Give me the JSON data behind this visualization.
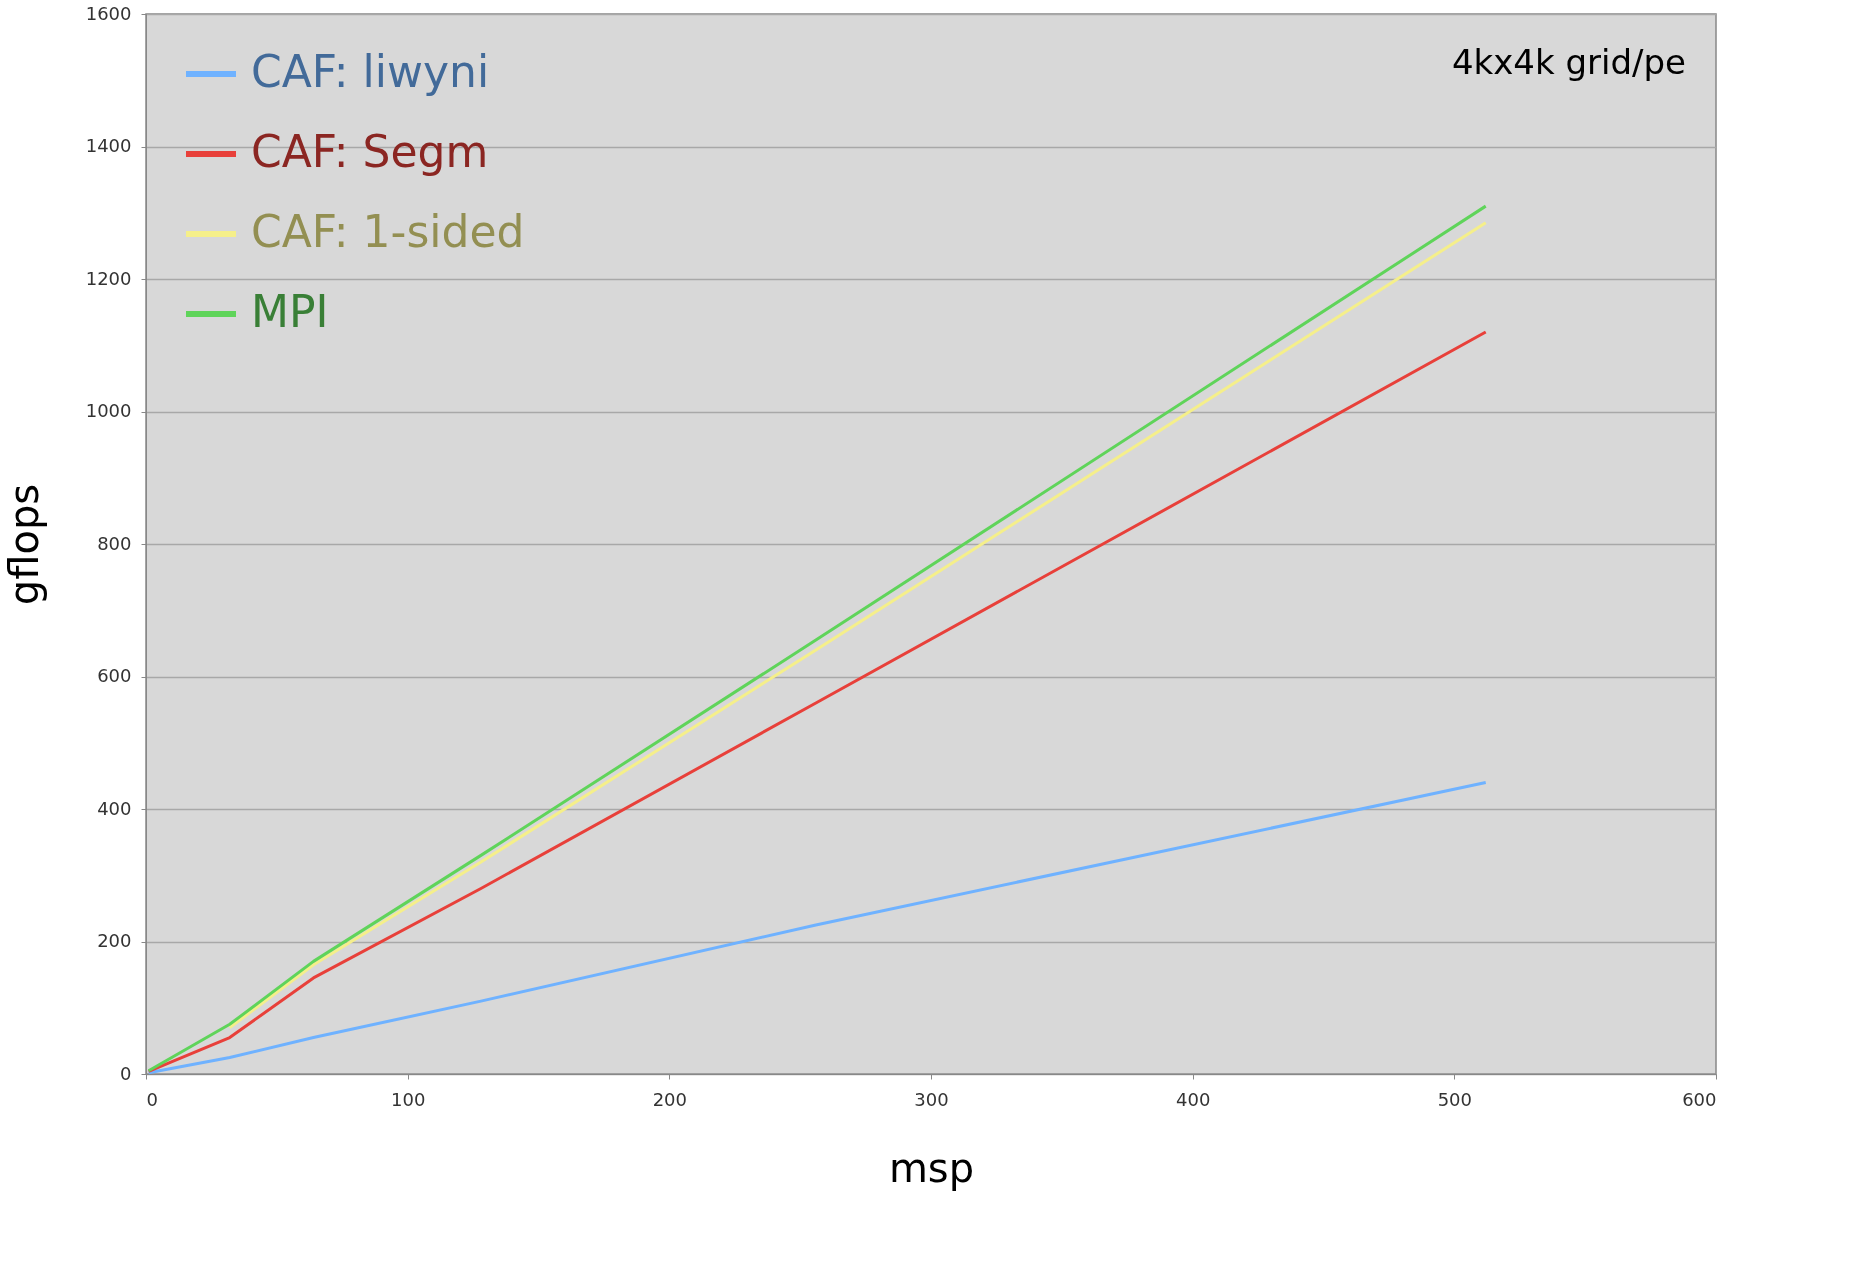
{
  "chart_data": {
    "type": "line",
    "xlabel": "msp",
    "ylabel": "gflops",
    "xlim": [
      0,
      600
    ],
    "xticks": [
      0,
      100,
      200,
      300,
      400,
      500,
      600
    ],
    "ylim": [
      0,
      1600
    ],
    "yticks": [
      0,
      200,
      400,
      600,
      800,
      1000,
      1200,
      1400,
      1600
    ],
    "grid": "y",
    "legend": "top left",
    "marker": "none",
    "line_style": "solid",
    "annotations": [
      "4kx4k grid/pe"
    ],
    "series": [
      {
        "name": "CAF: liwyni",
        "color": "#6fb2ff",
        "x": [
          1,
          32,
          64,
          128,
          256,
          512
        ],
        "values": [
          2,
          25,
          55,
          110,
          225,
          440
        ]
      },
      {
        "name": "CAF: Segm",
        "color": "#e8403a",
        "x": [
          1,
          32,
          64,
          128,
          256,
          512
        ],
        "values": [
          4,
          55,
          145,
          280,
          560,
          1120
        ]
      },
      {
        "name": "CAF: 1-sided",
        "color": "#f5ef8a",
        "x": [
          32,
          64,
          128,
          256,
          512
        ],
        "values": [
          70,
          165,
          320,
          640,
          1285
        ]
      },
      {
        "name": "MPI",
        "color": "#5fd45a",
        "x": [
          1,
          32,
          64,
          128,
          256,
          512
        ],
        "values": [
          5,
          75,
          170,
          330,
          655,
          1310
        ]
      }
    ]
  }
}
